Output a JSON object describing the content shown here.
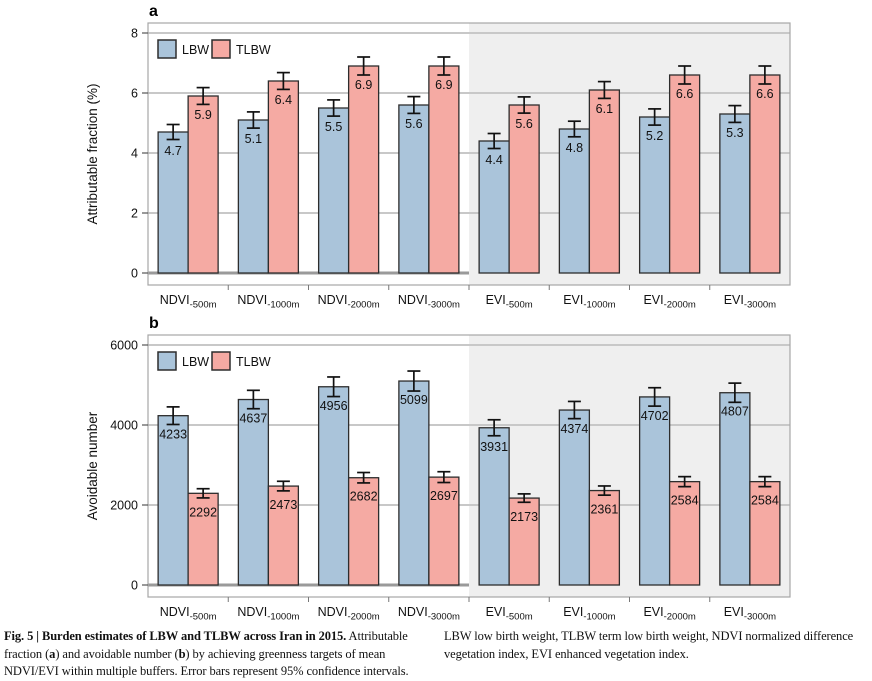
{
  "figure": {
    "caption_left_lines": [
      [
        {
          "text": "Fig. 5 | Burden estimates of LBW and TLBW across Iran in 2015.",
          "bold": true
        },
        {
          "text": " Attributable",
          "bold": false
        }
      ],
      [
        {
          "text": "fraction (",
          "bold": false
        },
        {
          "text": "a",
          "bold": true
        },
        {
          "text": ") and avoidable number (",
          "bold": false
        },
        {
          "text": "b",
          "bold": true
        },
        {
          "text": ") by achieving greenness targets of mean",
          "bold": false
        }
      ],
      [
        {
          "text": "NDVI/EVI within multiple buffers. Error bars represent 95% confidence intervals.",
          "bold": false
        }
      ]
    ],
    "caption_right_lines": [
      "LBW low birth weight, TLBW term low birth weight, NDVI normalized difference",
      "vegetation index, EVI enhanced vegetation index."
    ]
  },
  "colors": {
    "lbw": "#aac4da",
    "tlbw": "#f5aaa3",
    "shade": "#efefef",
    "grid": "#c8c8c8",
    "baseline": "#9a9a9a",
    "frame": "#a6a6a6",
    "bar_border": "#2d2d2d",
    "error": "#111111",
    "text": "#111111"
  },
  "chart_data": [
    {
      "type": "bar",
      "panel_label": "a",
      "ylabel": "Attributable fraction (%)",
      "ylim": [
        0,
        8
      ],
      "yticks": [
        0,
        2,
        4,
        6,
        8
      ],
      "grid": true,
      "legend_position": "top-left",
      "legend": [
        "LBW",
        "TLBW"
      ],
      "value_decimals": 1,
      "shaded_from_category": 4,
      "categories": [
        {
          "base": "NDVI",
          "sub": "-500m"
        },
        {
          "base": "NDVI",
          "sub": "-1000m"
        },
        {
          "base": "NDVI",
          "sub": "-2000m"
        },
        {
          "base": "NDVI",
          "sub": "-3000m"
        },
        {
          "base": "EVI",
          "sub": "-500m"
        },
        {
          "base": "EVI",
          "sub": "-1000m"
        },
        {
          "base": "EVI",
          "sub": "-2000m"
        },
        {
          "base": "EVI",
          "sub": "-3000m"
        }
      ],
      "series": [
        {
          "name": "LBW",
          "color": "#aac4da",
          "values": [
            4.7,
            5.1,
            5.5,
            5.6,
            4.4,
            4.8,
            5.2,
            5.3
          ],
          "ci": [
            0.25,
            0.27,
            0.27,
            0.28,
            0.25,
            0.26,
            0.27,
            0.28
          ]
        },
        {
          "name": "TLBW",
          "color": "#f5aaa3",
          "values": [
            5.9,
            6.4,
            6.9,
            6.9,
            5.6,
            6.1,
            6.6,
            6.6
          ],
          "ci": [
            0.28,
            0.28,
            0.3,
            0.3,
            0.27,
            0.28,
            0.3,
            0.3
          ]
        }
      ]
    },
    {
      "type": "bar",
      "panel_label": "b",
      "ylabel": "Avoidable number",
      "ylim": [
        0,
        6000
      ],
      "yticks": [
        0,
        2000,
        4000,
        6000
      ],
      "grid": true,
      "legend_position": "top-left",
      "legend": [
        "LBW",
        "TLBW"
      ],
      "value_decimals": 0,
      "shaded_from_category": 4,
      "categories": [
        {
          "base": "NDVI",
          "sub": "-500m"
        },
        {
          "base": "NDVI",
          "sub": "-1000m"
        },
        {
          "base": "NDVI",
          "sub": "-2000m"
        },
        {
          "base": "NDVI",
          "sub": "-3000m"
        },
        {
          "base": "EVI",
          "sub": "-500m"
        },
        {
          "base": "EVI",
          "sub": "-1000m"
        },
        {
          "base": "EVI",
          "sub": "-2000m"
        },
        {
          "base": "EVI",
          "sub": "-3000m"
        }
      ],
      "series": [
        {
          "name": "LBW",
          "color": "#aac4da",
          "values": [
            4233,
            4637,
            4956,
            5099,
            3931,
            4374,
            4702,
            4807
          ],
          "ci": [
            220,
            230,
            245,
            250,
            200,
            215,
            230,
            240
          ]
        },
        {
          "name": "TLBW",
          "color": "#f5aaa3",
          "values": [
            2292,
            2473,
            2682,
            2697,
            2173,
            2361,
            2584,
            2584
          ],
          "ci": [
            115,
            120,
            130,
            135,
            105,
            115,
            125,
            125
          ]
        }
      ]
    }
  ]
}
